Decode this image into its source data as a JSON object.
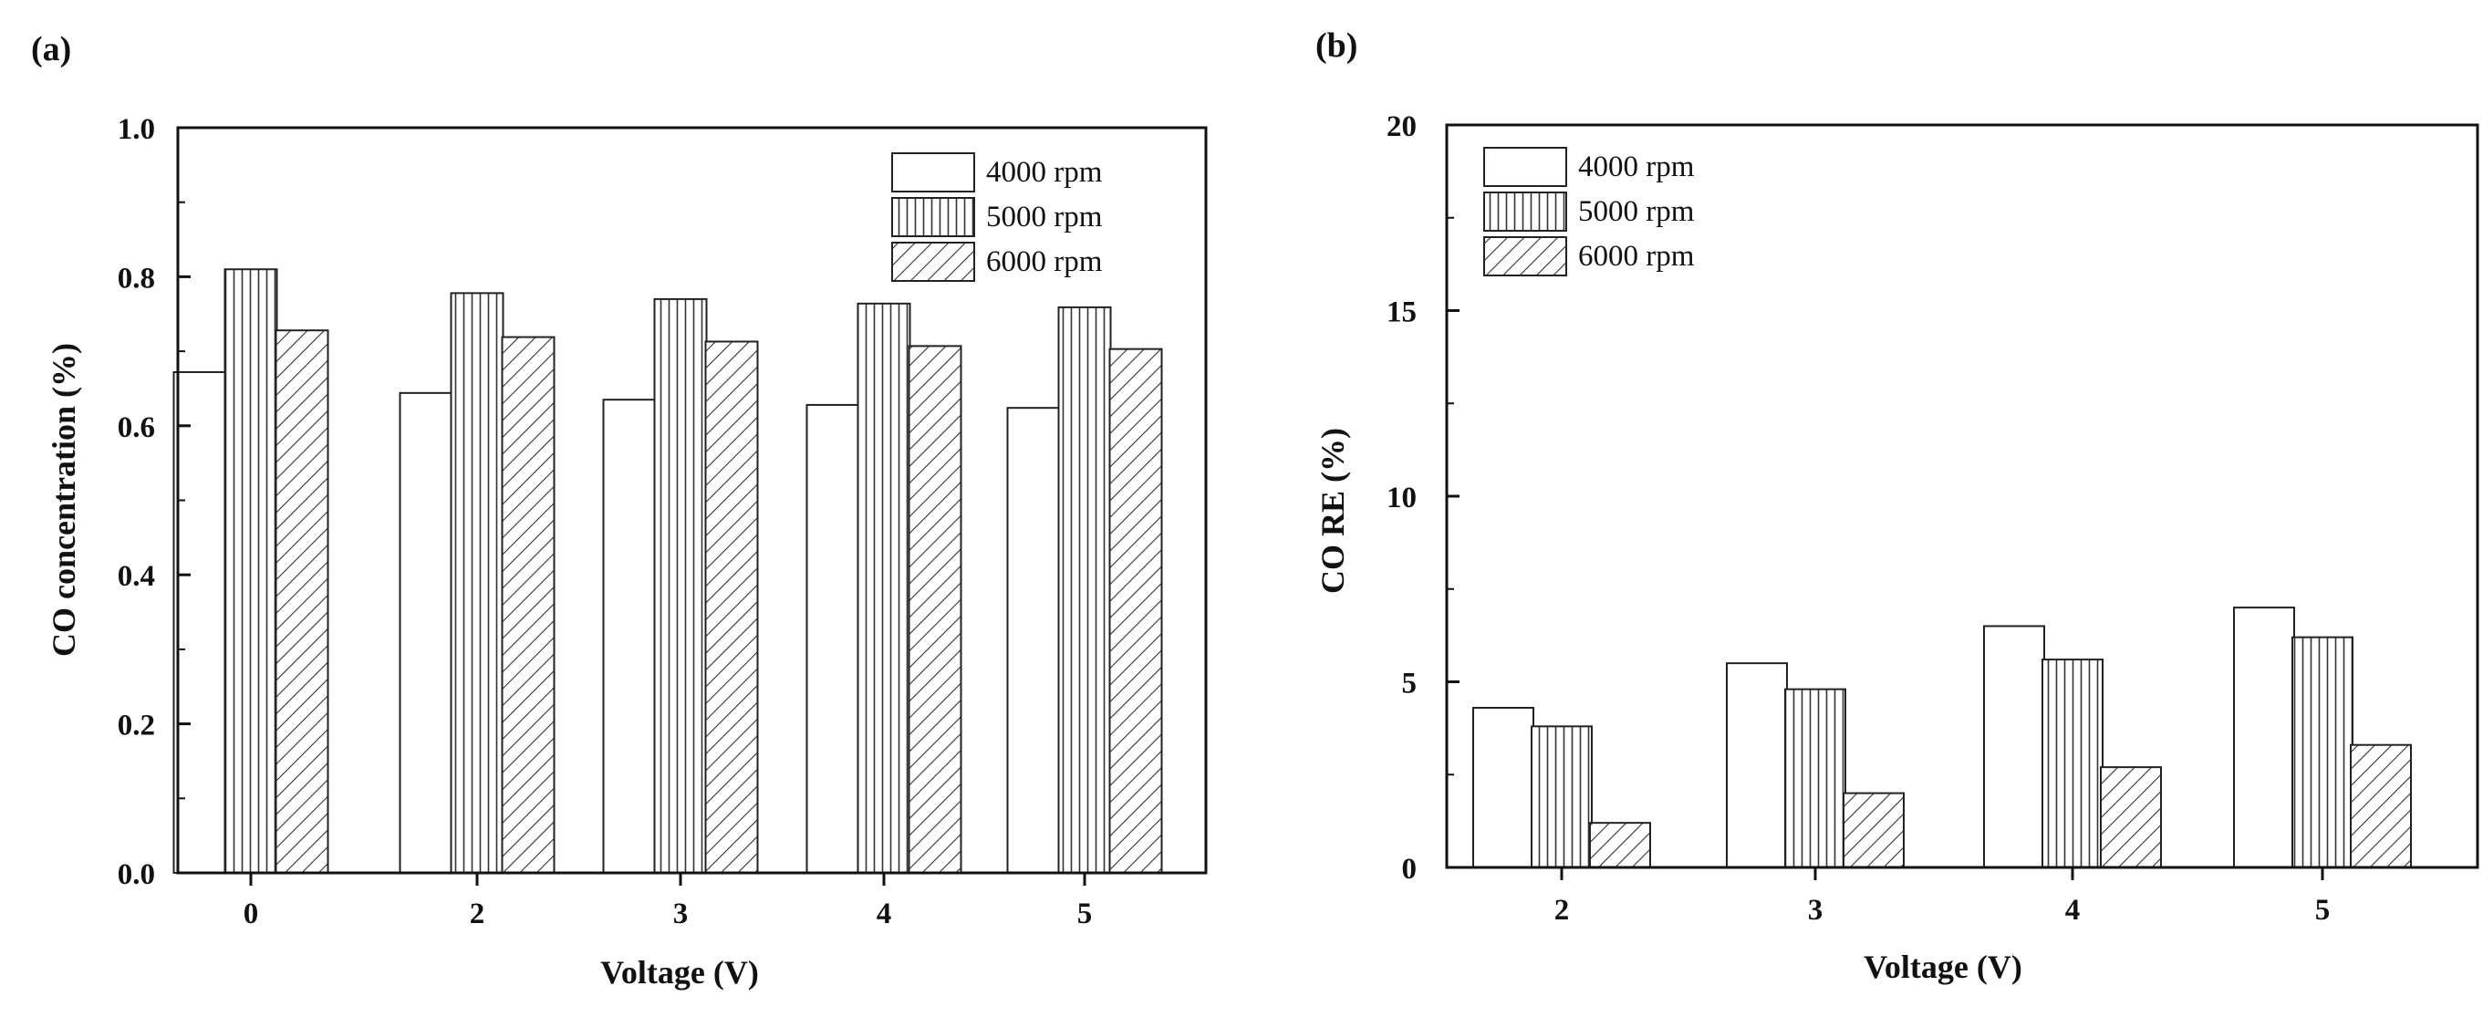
{
  "chart_data": [
    {
      "panel_label": "(a)",
      "type": "bar",
      "title": "",
      "xlabel": "Voltage (V)",
      "ylabel": "CO concentration (%)",
      "categories": [
        "0",
        "2",
        "3",
        "4",
        "5"
      ],
      "ylim": [
        0.0,
        1.0
      ],
      "yticks": [
        0.0,
        0.2,
        0.4,
        0.6,
        0.8,
        1.0
      ],
      "ytick_labels": [
        "0.0",
        "0.2",
        "0.4",
        "0.6",
        "0.8",
        "1.0"
      ],
      "legend_position": "top-right",
      "grid": false,
      "series": [
        {
          "name": "4000 rpm",
          "pattern": "empty",
          "values": [
            0.672,
            0.644,
            0.635,
            0.628,
            0.624
          ]
        },
        {
          "name": "5000 rpm",
          "pattern": "vertical",
          "values": [
            0.81,
            0.778,
            0.77,
            0.764,
            0.759
          ]
        },
        {
          "name": "6000 rpm",
          "pattern": "diagonal",
          "values": [
            0.728,
            0.719,
            0.713,
            0.707,
            0.703
          ]
        }
      ]
    },
    {
      "panel_label": "(b)",
      "type": "bar",
      "title": "",
      "xlabel": "Voltage (V)",
      "ylabel": "CO RE (%)",
      "categories": [
        "2",
        "3",
        "4",
        "5"
      ],
      "ylim": [
        0,
        20
      ],
      "yticks": [
        0,
        5,
        10,
        15,
        20
      ],
      "ytick_labels": [
        "0",
        "5",
        "10",
        "15",
        "20"
      ],
      "legend_position": "top-left",
      "grid": false,
      "series": [
        {
          "name": "4000 rpm",
          "pattern": "empty",
          "values": [
            4.3,
            5.5,
            6.5,
            7.0
          ]
        },
        {
          "name": "5000 rpm",
          "pattern": "vertical",
          "values": [
            3.8,
            4.8,
            5.6,
            6.2
          ]
        },
        {
          "name": "6000 rpm",
          "pattern": "diagonal",
          "values": [
            1.2,
            2.0,
            2.7,
            3.3
          ]
        }
      ]
    }
  ]
}
